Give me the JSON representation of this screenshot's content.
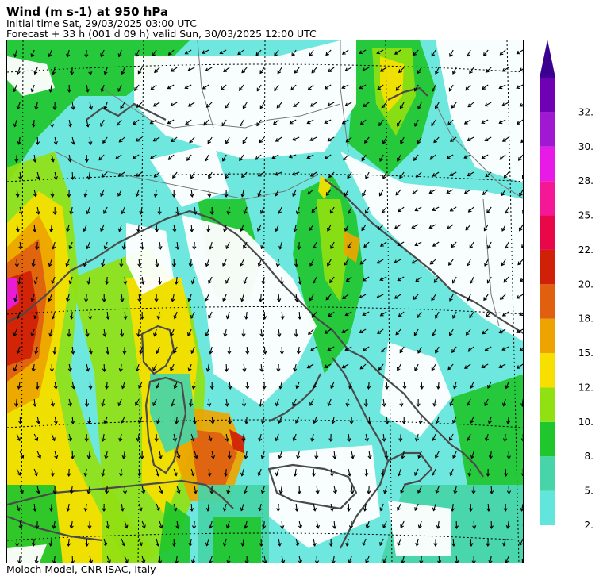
{
  "header": {
    "title": "Wind (m s-1) at 950 hPa",
    "initial_time": "Initial time  Sat, 29/03/2025  03:00 UTC",
    "forecast": "Forecast  +  33 h  (001 d 09 h)  valid Sun, 30/03/2025 12:00 UTC"
  },
  "footer": {
    "credit": "Moloch Model, CNR-ISAC, Italy"
  },
  "legend": {
    "colors": [
      "#62e6dc",
      "#47d4a8",
      "#1fc62c",
      "#90e012",
      "#f7df00",
      "#eda400",
      "#e06010",
      "#d02008",
      "#e8084a",
      "#f41896",
      "#e81be6",
      "#a018d2",
      "#7000b4"
    ],
    "labels": [
      "2.",
      "5.",
      "8.",
      "10.",
      "12.",
      "15.",
      "18.",
      "20.",
      "22.",
      "25.",
      "28.",
      "30.",
      "32."
    ],
    "arrow_color": "#3c0090"
  },
  "map": {
    "background": "#ffffff",
    "coast_color": "#4a4a4a",
    "border_color": "#777777",
    "grid_color": "#000000"
  }
}
